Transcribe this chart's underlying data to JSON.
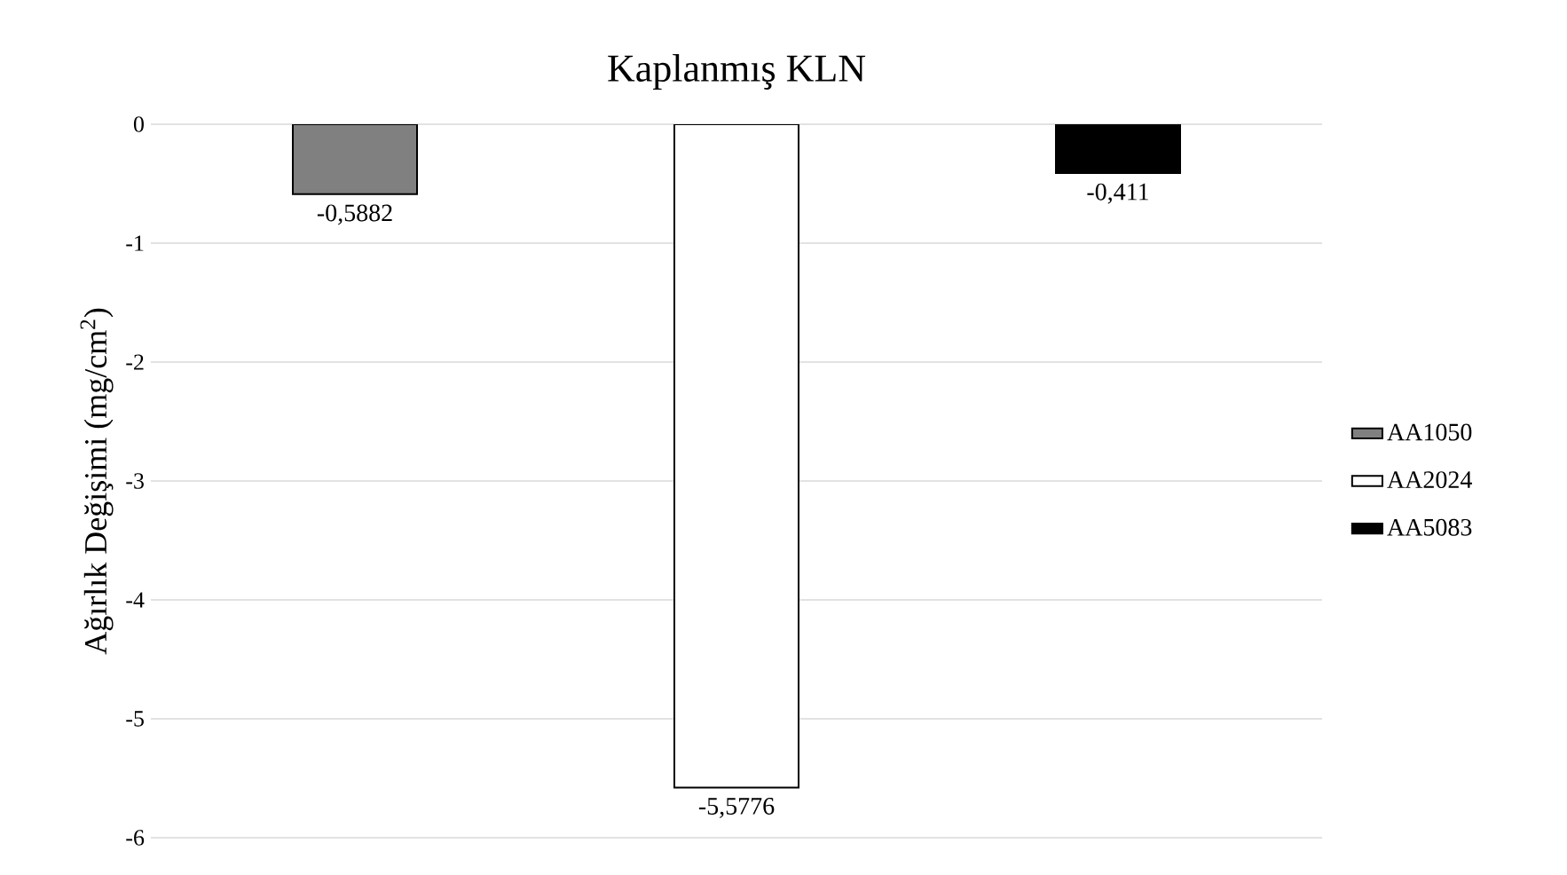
{
  "chart_data": {
    "type": "bar",
    "title": "Kaplanmış KLN",
    "ylabel": "Ağırlık Değişimi (mg/cm$^{2}$)",
    "categories": [
      null
    ],
    "series": [
      {
        "name": "AA1050",
        "color": "#808080",
        "values": [
          -0.5882
        ],
        "value_labels": [
          "-0,5882"
        ]
      },
      {
        "name": "AA2024",
        "color": "#ffffff",
        "values": [
          -5.5776
        ],
        "value_labels": [
          "-5,5776"
        ]
      },
      {
        "name": "AA5083",
        "color": "#000000",
        "values": [
          -0.411
        ],
        "value_labels": [
          "-0,411"
        ]
      }
    ],
    "ylim": [
      -6,
      0
    ],
    "yticks": [
      -6,
      -5,
      -4,
      -3,
      -2,
      -1,
      0
    ],
    "grid": "y",
    "legend": "right"
  }
}
